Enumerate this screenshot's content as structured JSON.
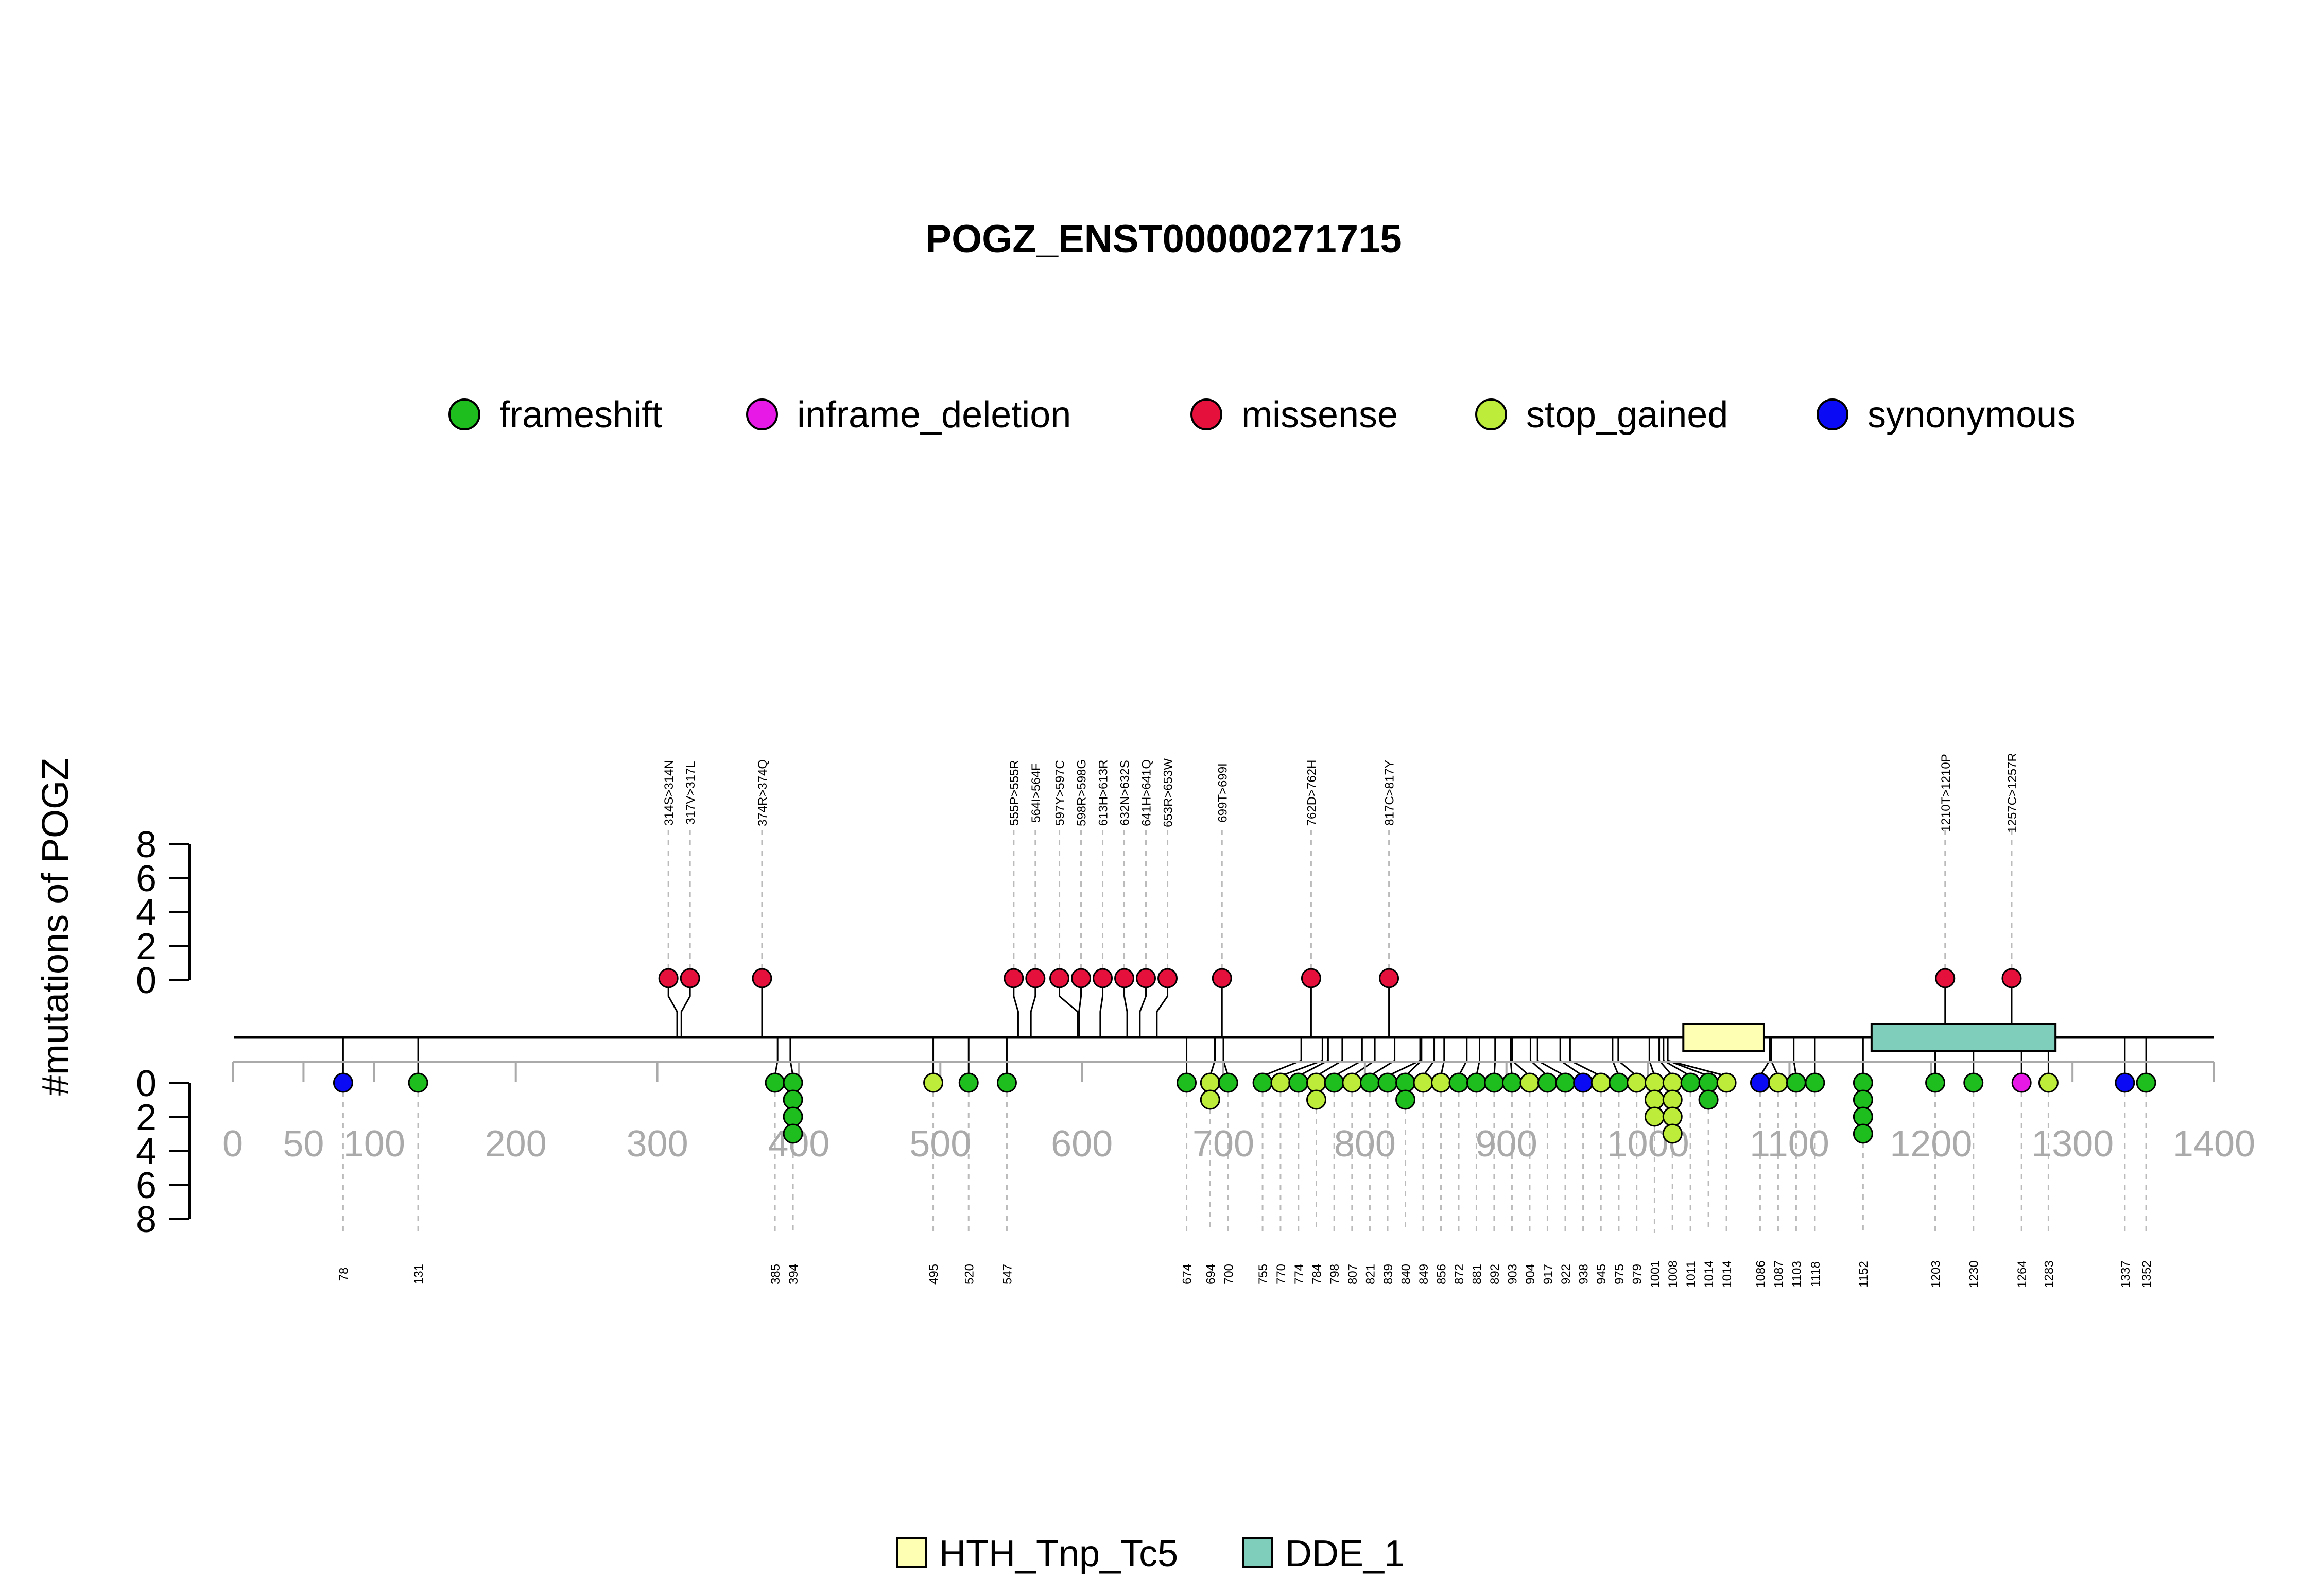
{
  "chart_data": {
    "type": "lollipop",
    "title": "POGZ_ENST00000271715",
    "ylabel": "#mutations of POGZ",
    "protein_length": 1410,
    "xlim": [
      0,
      1400
    ],
    "x_ticks": [
      0,
      50,
      100,
      200,
      300,
      400,
      500,
      600,
      700,
      800,
      900,
      1000,
      1100,
      1200,
      1300,
      1400
    ],
    "y_ticks": [
      0,
      2,
      4,
      6,
      8
    ],
    "ylim": [
      0,
      8
    ],
    "legend": [
      {
        "name": "frameshift",
        "color": "#1EBE1E"
      },
      {
        "name": "inframe_deletion",
        "color": "#E619E6"
      },
      {
        "name": "missense",
        "color": "#E6103C"
      },
      {
        "name": "stop_gained",
        "color": "#BDED3A"
      },
      {
        "name": "synonymous",
        "color": "#0A0AF5"
      }
    ],
    "domains": [
      {
        "name": "HTH_Tnp_Tc5",
        "start": 1025,
        "end": 1082,
        "color": "#FFFFB3"
      },
      {
        "name": "DDE_1",
        "start": 1158,
        "end": 1288,
        "color": "#7FCDBB"
      }
    ],
    "top_mutations": [
      {
        "pos": 314,
        "label": "314S>314N",
        "type": "missense",
        "count": 1
      },
      {
        "pos": 317,
        "label": "317V>317L",
        "type": "missense",
        "count": 1
      },
      {
        "pos": 374,
        "label": "374R>374Q",
        "type": "missense",
        "count": 1
      },
      {
        "pos": 555,
        "label": "555P>555R",
        "type": "missense",
        "count": 1
      },
      {
        "pos": 564,
        "label": "564I>564F",
        "type": "missense",
        "count": 1
      },
      {
        "pos": 597,
        "label": "597Y>597C",
        "type": "missense",
        "count": 1
      },
      {
        "pos": 598,
        "label": "598R>598G",
        "type": "missense",
        "count": 1
      },
      {
        "pos": 613,
        "label": "613H>613R",
        "type": "missense",
        "count": 1
      },
      {
        "pos": 632,
        "label": "632N>632S",
        "type": "missense",
        "count": 1
      },
      {
        "pos": 641,
        "label": "641H>641Q",
        "type": "missense",
        "count": 1
      },
      {
        "pos": 653,
        "label": "653R>653W",
        "type": "missense",
        "count": 1
      },
      {
        "pos": 699,
        "label": "699T>699I",
        "type": "missense",
        "count": 1
      },
      {
        "pos": 762,
        "label": "762D>762H",
        "type": "missense",
        "count": 1
      },
      {
        "pos": 817,
        "label": "817C>817Y",
        "type": "missense",
        "count": 1
      },
      {
        "pos": 1210,
        "label": "1210T>1210P",
        "type": "missense",
        "count": 1
      },
      {
        "pos": 1257,
        "label": "1257C>1257R",
        "type": "missense",
        "count": 1
      }
    ],
    "bottom_mutations": [
      {
        "pos": 78,
        "label": "78",
        "types": [
          "synonymous"
        ]
      },
      {
        "pos": 131,
        "label": "131",
        "types": [
          "frameshift"
        ]
      },
      {
        "pos": 385,
        "label": "385",
        "types": [
          "frameshift"
        ]
      },
      {
        "pos": 394,
        "label": "394",
        "types": [
          "frameshift",
          "frameshift",
          "frameshift",
          "frameshift"
        ]
      },
      {
        "pos": 495,
        "label": "495",
        "types": [
          "stop_gained"
        ]
      },
      {
        "pos": 520,
        "label": "520",
        "types": [
          "frameshift"
        ]
      },
      {
        "pos": 547,
        "label": "547",
        "types": [
          "frameshift"
        ]
      },
      {
        "pos": 674,
        "label": "674",
        "types": [
          "frameshift"
        ]
      },
      {
        "pos": 694,
        "label": "694",
        "types": [
          "stop_gained",
          "stop_gained"
        ]
      },
      {
        "pos": 700,
        "label": "700",
        "types": [
          "frameshift"
        ]
      },
      {
        "pos": 755,
        "label": "755",
        "types": [
          "frameshift"
        ]
      },
      {
        "pos": 770,
        "label": "770",
        "types": [
          "stop_gained"
        ]
      },
      {
        "pos": 774,
        "label": "774",
        "types": [
          "frameshift"
        ]
      },
      {
        "pos": 784,
        "label": "784",
        "types": [
          "stop_gained",
          "stop_gained"
        ]
      },
      {
        "pos": 798,
        "label": "798",
        "types": [
          "frameshift"
        ]
      },
      {
        "pos": 807,
        "label": "807",
        "types": [
          "stop_gained"
        ]
      },
      {
        "pos": 821,
        "label": "821",
        "types": [
          "frameshift"
        ]
      },
      {
        "pos": 839,
        "label": "839",
        "types": [
          "frameshift"
        ]
      },
      {
        "pos": 840,
        "label": "840",
        "types": [
          "frameshift",
          "frameshift"
        ]
      },
      {
        "pos": 849,
        "label": "849",
        "types": [
          "stop_gained"
        ]
      },
      {
        "pos": 856,
        "label": "856",
        "types": [
          "stop_gained"
        ]
      },
      {
        "pos": 872,
        "label": "872",
        "types": [
          "frameshift"
        ]
      },
      {
        "pos": 881,
        "label": "881",
        "types": [
          "frameshift"
        ]
      },
      {
        "pos": 892,
        "label": "892",
        "types": [
          "frameshift"
        ]
      },
      {
        "pos": 903,
        "label": "903",
        "types": [
          "frameshift"
        ]
      },
      {
        "pos": 904,
        "label": "904",
        "types": [
          "stop_gained"
        ]
      },
      {
        "pos": 917,
        "label": "917",
        "types": [
          "frameshift"
        ]
      },
      {
        "pos": 922,
        "label": "922",
        "types": [
          "frameshift"
        ]
      },
      {
        "pos": 938,
        "label": "938",
        "types": [
          "synonymous"
        ]
      },
      {
        "pos": 945,
        "label": "945",
        "types": [
          "stop_gained"
        ]
      },
      {
        "pos": 975,
        "label": "975",
        "types": [
          "frameshift"
        ]
      },
      {
        "pos": 979,
        "label": "979",
        "types": [
          "stop_gained"
        ]
      },
      {
        "pos": 1001,
        "label": "1001",
        "types": [
          "stop_gained",
          "stop_gained",
          "stop_gained"
        ]
      },
      {
        "pos": 1008,
        "label": "1008",
        "types": [
          "stop_gained",
          "stop_gained",
          "stop_gained",
          "stop_gained"
        ]
      },
      {
        "pos": 1011,
        "label": "1011",
        "types": [
          "frameshift"
        ]
      },
      {
        "pos": 1014,
        "label": "1014",
        "types": [
          "frameshift",
          "frameshift"
        ]
      },
      {
        "pos": 1014,
        "label": "1014",
        "types": [
          "stop_gained"
        ]
      },
      {
        "pos": 1086,
        "label": "1086",
        "types": [
          "synonymous"
        ]
      },
      {
        "pos": 1087,
        "label": "1087",
        "types": [
          "stop_gained"
        ]
      },
      {
        "pos": 1103,
        "label": "1103",
        "types": [
          "frameshift"
        ]
      },
      {
        "pos": 1118,
        "label": "1118",
        "types": [
          "frameshift"
        ]
      },
      {
        "pos": 1152,
        "label": "1152",
        "types": [
          "frameshift",
          "frameshift",
          "frameshift",
          "frameshift"
        ]
      },
      {
        "pos": 1203,
        "label": "1203",
        "types": [
          "frameshift"
        ]
      },
      {
        "pos": 1230,
        "label": "1230",
        "types": [
          "frameshift"
        ]
      },
      {
        "pos": 1264,
        "label": "1264",
        "types": [
          "inframe_deletion"
        ]
      },
      {
        "pos": 1283,
        "label": "1283",
        "types": [
          "stop_gained"
        ]
      },
      {
        "pos": 1337,
        "label": "1337",
        "types": [
          "synonymous"
        ]
      },
      {
        "pos": 1352,
        "label": "1352",
        "types": [
          "frameshift"
        ]
      }
    ]
  }
}
